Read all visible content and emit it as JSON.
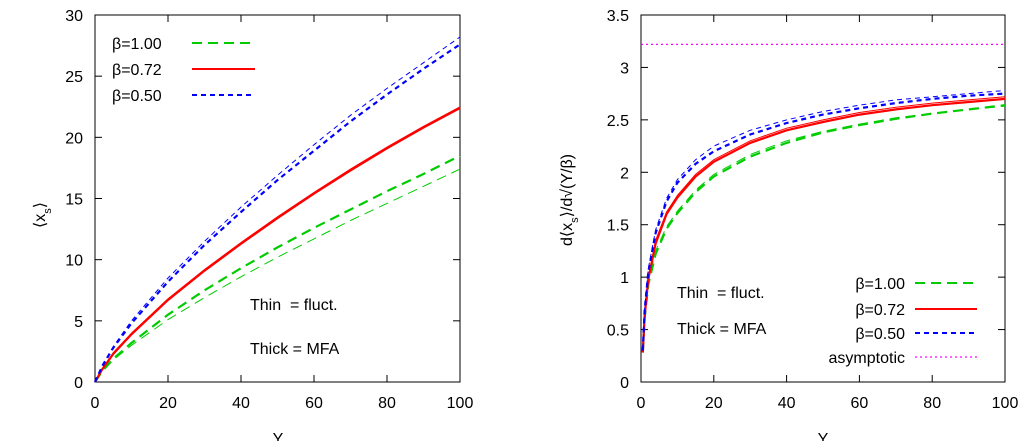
{
  "chart_data": [
    {
      "type": "line",
      "xlabel": "Y",
      "ylabel": "⟨x_s⟩",
      "ylabel_main": "⟨x",
      "ylabel_sub": "s",
      "ylabel_close": "⟩",
      "xlim": [
        0,
        100
      ],
      "ylim": [
        0,
        30
      ],
      "xticks": [
        "0",
        "20",
        "40",
        "60",
        "80",
        "100"
      ],
      "yticks": [
        "0",
        "5",
        "10",
        "15",
        "20",
        "25",
        "30"
      ],
      "legend_position": "top-left",
      "annotations": [
        "Thin  = fluct.",
        "Thick = MFA"
      ],
      "series": [
        {
          "name": "β=1.00",
          "color": "#00cc00",
          "dash": "dashed",
          "thin": {
            "x": [
              0,
              2,
              5,
              10,
              20,
              30,
              40,
              50,
              60,
              70,
              80,
              90,
              100
            ],
            "y": [
              0,
              0.85,
              1.8,
              3.0,
              5.1,
              6.9,
              8.6,
              10.2,
              11.7,
              13.2,
              14.6,
              16.0,
              17.4
            ]
          },
          "thick": {
            "x": [
              0,
              2,
              5,
              10,
              20,
              30,
              40,
              50,
              60,
              70,
              80,
              90,
              100
            ],
            "y": [
              0,
              0.9,
              1.9,
              3.2,
              5.5,
              7.5,
              9.3,
              11.0,
              12.6,
              14.1,
              15.6,
              17.0,
              18.5
            ]
          }
        },
        {
          "name": "β=0.72",
          "color": "#ff0000",
          "dash": "solid",
          "thin": {
            "x": [
              0,
              2,
              5,
              10,
              20,
              30,
              40,
              50,
              60,
              70,
              80,
              90,
              100
            ],
            "y": [
              0,
              1.1,
              2.4,
              4.0,
              6.8,
              9.2,
              11.4,
              13.5,
              15.5,
              17.4,
              19.2,
              20.9,
              22.5
            ]
          },
          "thick": {
            "x": [
              0,
              2,
              5,
              10,
              20,
              30,
              40,
              50,
              60,
              70,
              80,
              90,
              100
            ],
            "y": [
              0,
              1.05,
              2.3,
              3.9,
              6.7,
              9.1,
              11.3,
              13.4,
              15.4,
              17.3,
              19.1,
              20.8,
              22.4
            ]
          }
        },
        {
          "name": "β=0.50",
          "color": "#0000ff",
          "dash": "dashed",
          "thin": {
            "x": [
              0,
              2,
              5,
              10,
              20,
              30,
              40,
              50,
              60,
              70,
              80,
              90,
              100
            ],
            "y": [
              0,
              1.4,
              2.9,
              5.0,
              8.5,
              11.5,
              14.3,
              16.9,
              19.4,
              21.8,
              24.0,
              26.1,
              28.2
            ]
          },
          "thick": {
            "x": [
              0,
              2,
              5,
              10,
              20,
              30,
              40,
              50,
              60,
              70,
              80,
              90,
              100
            ],
            "y": [
              0,
              1.3,
              2.8,
              4.8,
              8.2,
              11.2,
              13.9,
              16.5,
              18.9,
              21.3,
              23.5,
              25.6,
              27.6
            ]
          }
        }
      ]
    },
    {
      "type": "line",
      "xlabel": "Y",
      "ylabel": "d⟨x_s⟩/d√(Y/β)",
      "ylabel_p1": "d⟨x",
      "ylabel_sub": "s",
      "ylabel_p2": "⟩/d√(Y/β)",
      "xlim": [
        0,
        100
      ],
      "ylim": [
        0,
        3.5
      ],
      "xticks": [
        "0",
        "20",
        "40",
        "60",
        "80",
        "100"
      ],
      "yticks": [
        "0",
        "0.5",
        "1",
        "1.5",
        "2",
        "2.5",
        "3",
        "3.5"
      ],
      "legend_position": "bottom-right",
      "annotations": [
        "Thin  = fluct.",
        "Thick = MFA"
      ],
      "asymptote": {
        "name": "asymptotic",
        "color": "#ff00ff",
        "dash": "dotted",
        "y": 3.22
      },
      "series": [
        {
          "name": "β=1.00",
          "color": "#00cc00",
          "dash": "dashed",
          "thin": {
            "x": [
              0.5,
              1,
              2,
              4,
              7,
              10,
              15,
              20,
              30,
              40,
              50,
              60,
              70,
              80,
              90,
              100
            ],
            "y": [
              0.3,
              0.62,
              0.95,
              1.25,
              1.48,
              1.63,
              1.83,
              1.98,
              2.17,
              2.3,
              2.39,
              2.46,
              2.52,
              2.56,
              2.6,
              2.63
            ]
          },
          "thick": {
            "x": [
              0.5,
              1,
              2,
              4,
              7,
              10,
              15,
              20,
              30,
              40,
              50,
              60,
              70,
              80,
              90,
              100
            ],
            "y": [
              0.28,
              0.6,
              0.93,
              1.22,
              1.46,
              1.61,
              1.81,
              1.96,
              2.15,
              2.28,
              2.38,
              2.45,
              2.51,
              2.56,
              2.6,
              2.64
            ]
          }
        },
        {
          "name": "β=0.72",
          "color": "#ff0000",
          "dash": "solid",
          "thin": {
            "x": [
              0.5,
              1,
              2,
              4,
              7,
              10,
              15,
              20,
              30,
              40,
              50,
              60,
              70,
              80,
              90,
              100
            ],
            "y": [
              0.3,
              0.65,
              1.0,
              1.35,
              1.62,
              1.78,
              1.98,
              2.12,
              2.3,
              2.42,
              2.5,
              2.57,
              2.62,
              2.66,
              2.69,
              2.72
            ]
          },
          "thick": {
            "x": [
              0.5,
              1,
              2,
              4,
              7,
              10,
              15,
              20,
              30,
              40,
              50,
              60,
              70,
              80,
              90,
              100
            ],
            "y": [
              0.28,
              0.62,
              0.98,
              1.32,
              1.6,
              1.76,
              1.96,
              2.1,
              2.28,
              2.4,
              2.48,
              2.55,
              2.6,
              2.64,
              2.67,
              2.7
            ]
          }
        },
        {
          "name": "β=0.50",
          "color": "#0000ff",
          "dash": "dashed",
          "thin": {
            "x": [
              0.5,
              1,
              2,
              4,
              7,
              10,
              15,
              20,
              30,
              40,
              50,
              60,
              70,
              80,
              90,
              100
            ],
            "y": [
              0.32,
              0.7,
              1.08,
              1.45,
              1.75,
              1.93,
              2.12,
              2.25,
              2.4,
              2.5,
              2.58,
              2.64,
              2.69,
              2.72,
              2.75,
              2.78
            ]
          },
          "thick": {
            "x": [
              0.5,
              1,
              2,
              4,
              7,
              10,
              15,
              20,
              30,
              40,
              50,
              60,
              70,
              80,
              90,
              100
            ],
            "y": [
              0.3,
              0.68,
              1.05,
              1.42,
              1.72,
              1.9,
              2.08,
              2.2,
              2.36,
              2.47,
              2.55,
              2.61,
              2.66,
              2.7,
              2.73,
              2.75
            ]
          }
        }
      ]
    }
  ]
}
